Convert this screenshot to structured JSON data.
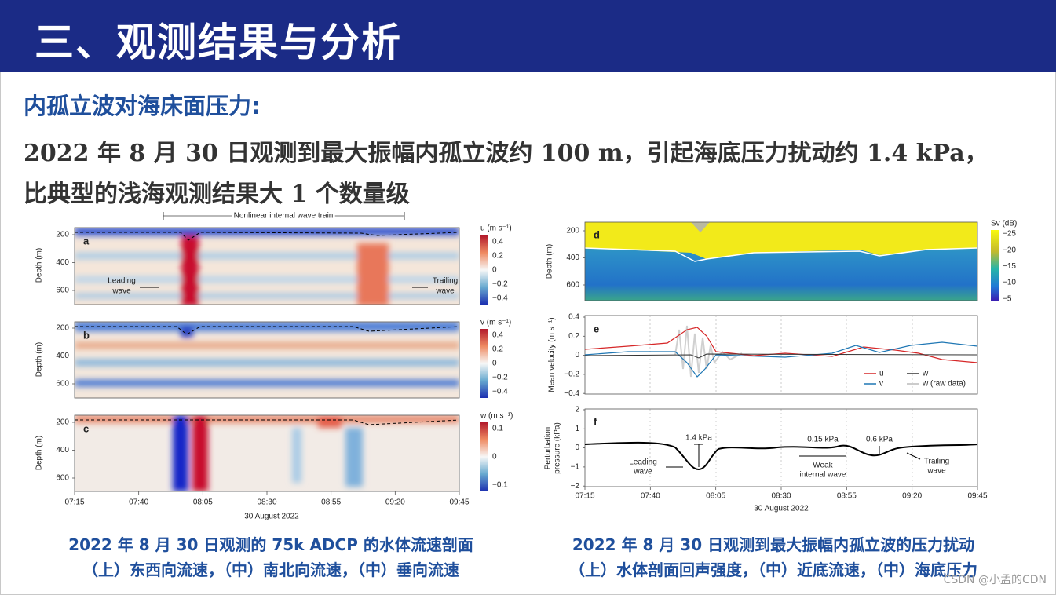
{
  "header": {
    "title": "三、观测结果与分析"
  },
  "section": {
    "heading": "内孤立波对海床面压力:"
  },
  "body": {
    "lines": [
      "2022 年 8 月 30 日观测到最大振幅内孤立波约 100 m，引起海底压力扰动约 1.4 kPa，",
      "比典型的浅海观测结果大 1 个数量级"
    ]
  },
  "left_figure": {
    "top_annotation": "Nonlinear internal wave train",
    "y_label": "Depth (m)",
    "y_ticks": [
      "200",
      "400",
      "600"
    ],
    "x_ticks": [
      "07:15",
      "07:40",
      "08:05",
      "08:30",
      "08:55",
      "09:20",
      "09:45"
    ],
    "x_label": "30 August 2022",
    "leading_wave": [
      "Leading",
      "wave"
    ],
    "trailing_wave": [
      "Trailing",
      "wave"
    ],
    "panels": [
      {
        "label": "a",
        "colorbar_title": "u (m s⁻¹)",
        "colorbar_ticks": [
          "0.4",
          "0.2",
          "0",
          "−0.2",
          "−0.4"
        ]
      },
      {
        "label": "b",
        "colorbar_title": "v (m s⁻¹)",
        "colorbar_ticks": [
          "0.4",
          "0.2",
          "0",
          "−0.2",
          "−0.4"
        ]
      },
      {
        "label": "c",
        "colorbar_title": "w (m s⁻¹)",
        "colorbar_ticks": [
          "0.1",
          "0",
          "−0.1"
        ]
      }
    ]
  },
  "right_figure": {
    "x_ticks": [
      "07:15",
      "07:40",
      "08:05",
      "08:30",
      "08:55",
      "09:20",
      "09:45"
    ],
    "x_label": "30 August 2022",
    "panel_d": {
      "label": "d",
      "y_label": "Depth (m)",
      "y_ticks": [
        "200",
        "400",
        "600"
      ],
      "colorbar_title": "Sv (dB)",
      "colorbar_ticks": [
        "−25",
        "−20",
        "−15",
        "−10",
        "−5"
      ]
    },
    "panel_e": {
      "label": "e",
      "y_label": "Mean velocity (m s⁻¹)",
      "y_ticks": [
        "0.4",
        "0.2",
        "0",
        "−0.2",
        "−0.4"
      ],
      "legend": [
        "u",
        "w",
        "v",
        "w (raw data)"
      ]
    },
    "panel_f": {
      "label": "f",
      "y_label": [
        "Perturbation",
        "pressure (kPa)"
      ],
      "y_ticks": [
        "2",
        "1",
        "0",
        "−1",
        "−2"
      ],
      "annotations": [
        "1.4 kPa",
        "0.15 kPa",
        "0.6 kPa"
      ],
      "leading_wave": [
        "Leading",
        "wave"
      ],
      "weak_wave": [
        "Weak",
        "internal wave"
      ],
      "trailing_wave": [
        "Trailing",
        "wave"
      ]
    }
  },
  "captions": {
    "left": [
      "2022 年 8 月 30 日观测的 75k ADCP 的水体流速剖面",
      "（上）东西向流速，（中）南北向流速，（中）垂向流速"
    ],
    "right": [
      "2022 年 8 月 30 日观测到最大振幅内孤立波的压力扰动",
      "（上）水体剖面回声强度，（中）近底流速，（中）海底压力"
    ]
  },
  "watermark": "CSDN @小孟的CDN"
}
